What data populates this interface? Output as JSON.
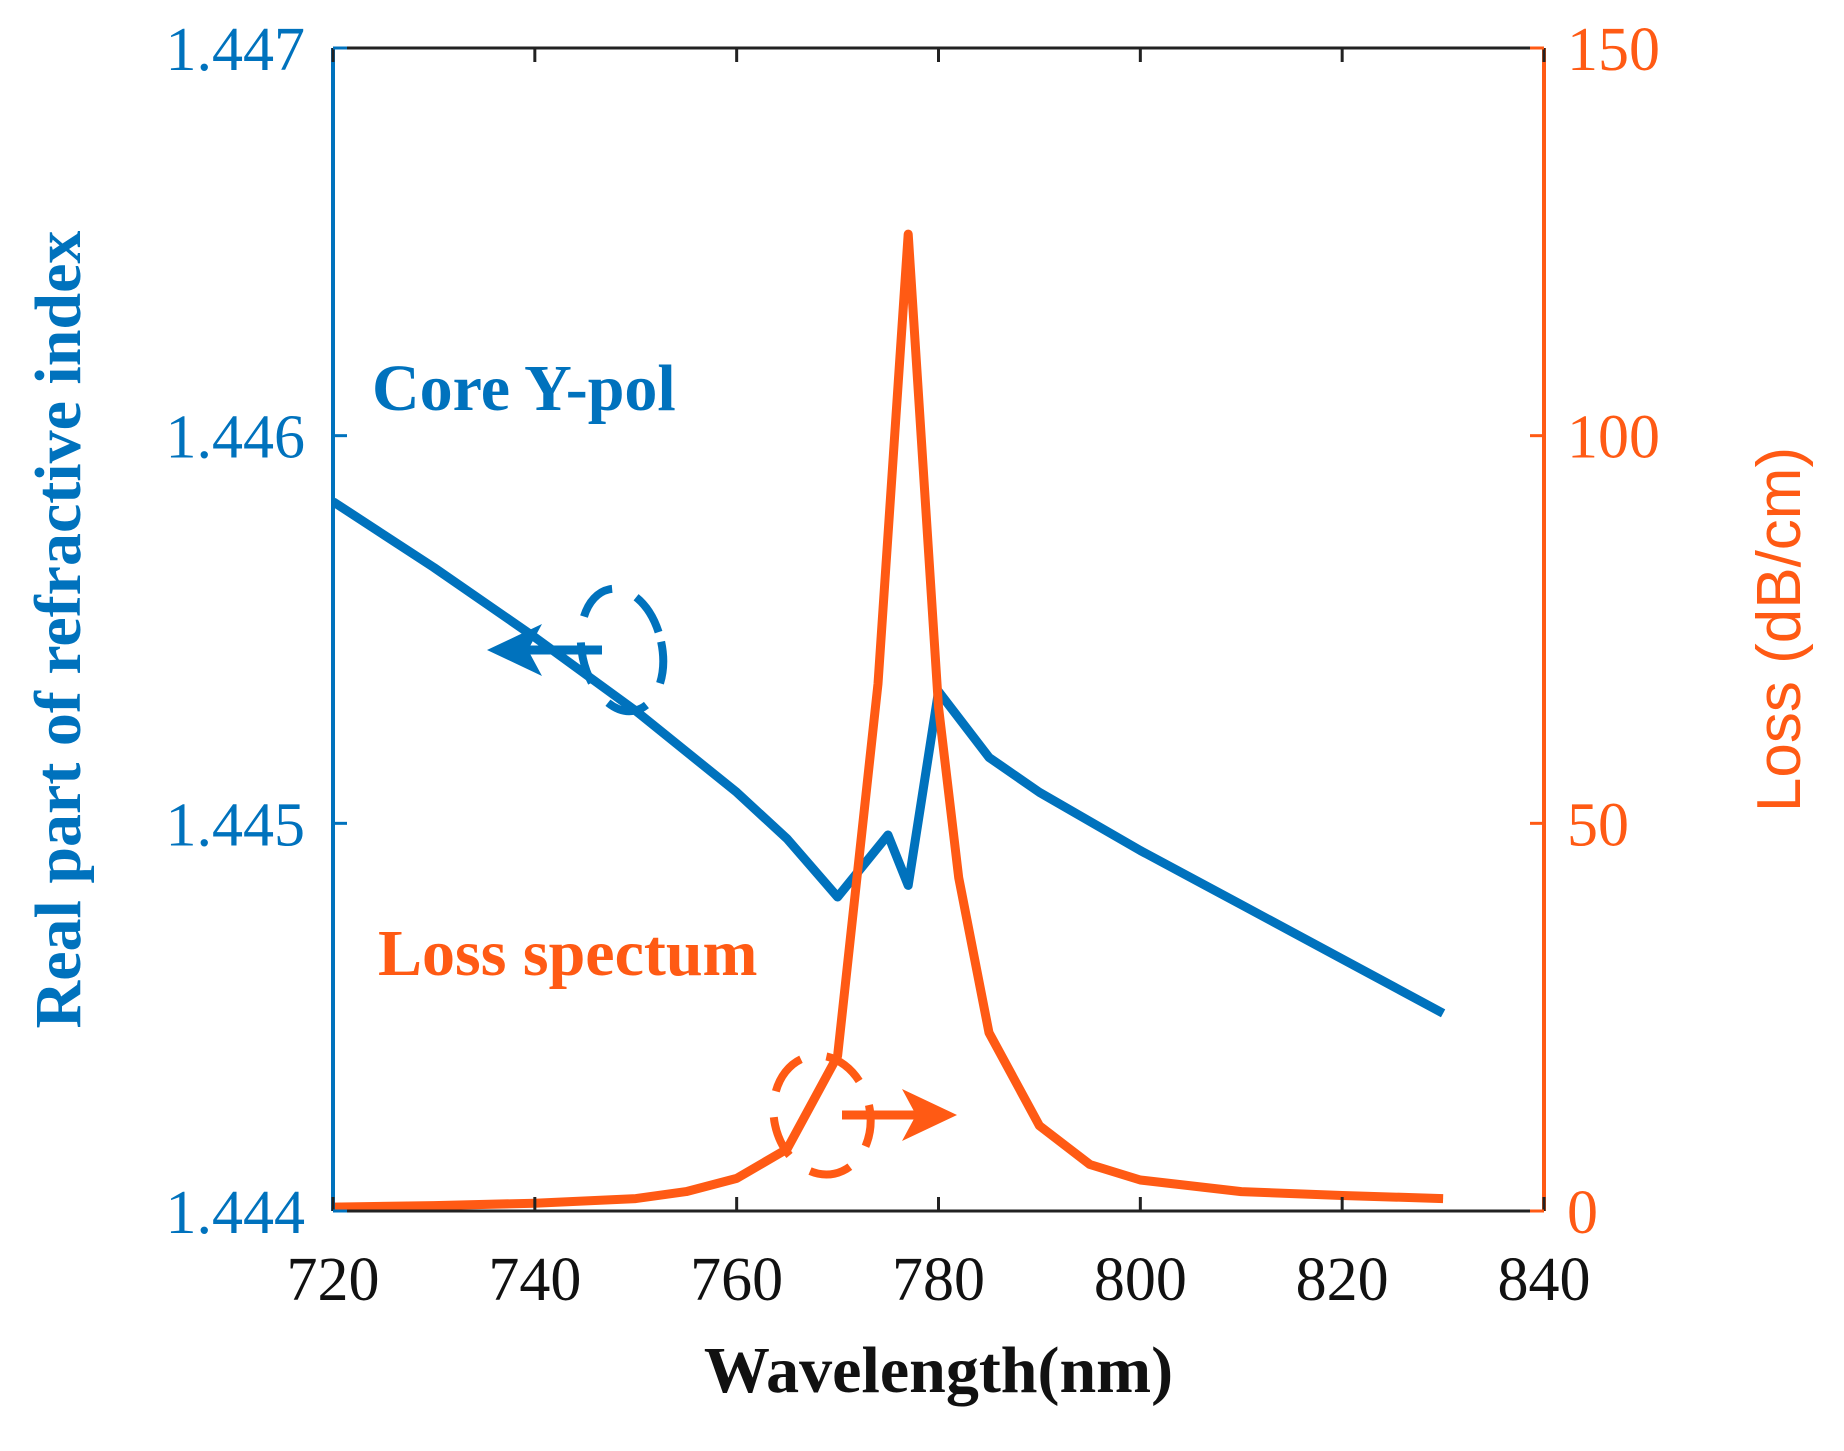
{
  "chart_data": {
    "type": "line",
    "title": "",
    "xlabel": "Wavelength(nm)",
    "ylabel_left": "Real part of refractive index",
    "ylabel_right": "Loss (dB/cm)",
    "xlim": [
      720,
      840
    ],
    "ylim_left": [
      1.444,
      1.447
    ],
    "ylim_right": [
      0,
      150
    ],
    "x_ticks": [
      720,
      740,
      760,
      780,
      800,
      820,
      840
    ],
    "y_ticks_left": [
      "1.444",
      "1.445",
      "1.446",
      "1.447"
    ],
    "y_ticks_right": [
      "0",
      "50",
      "100",
      "150"
    ],
    "grid": false,
    "colors": {
      "left": "#0072BD",
      "right": "#FF5A14",
      "axis": "#222222"
    },
    "series": [
      {
        "name": "Core Y-pol",
        "axis": "left",
        "x": [
          720,
          730,
          740,
          750,
          760,
          765,
          770,
          775,
          777,
          780,
          785,
          790,
          800,
          810,
          820,
          830
        ],
        "y": [
          1.44583,
          1.44566,
          1.44548,
          1.44529,
          1.44508,
          1.44496,
          1.44481,
          1.44497,
          1.44484,
          1.44534,
          1.44517,
          1.44508,
          1.44493,
          1.44479,
          1.44465,
          1.44451
        ]
      },
      {
        "name": "Loss spectum",
        "axis": "right",
        "x": [
          720,
          730,
          740,
          750,
          755,
          760,
          765,
          770,
          774,
          777,
          780,
          782,
          785,
          790,
          795,
          800,
          810,
          820,
          830
        ],
        "y": [
          0.5,
          0.7,
          1.0,
          1.6,
          2.5,
          4.2,
          8,
          20,
          68,
          126,
          65,
          43,
          23,
          11,
          6,
          4,
          2.5,
          2.0,
          1.6
        ]
      }
    ],
    "annotations": [
      {
        "text": "Core Y-pol",
        "series": "Core Y-pol"
      },
      {
        "text": "Loss spectum",
        "series": "Loss spectum"
      }
    ]
  }
}
